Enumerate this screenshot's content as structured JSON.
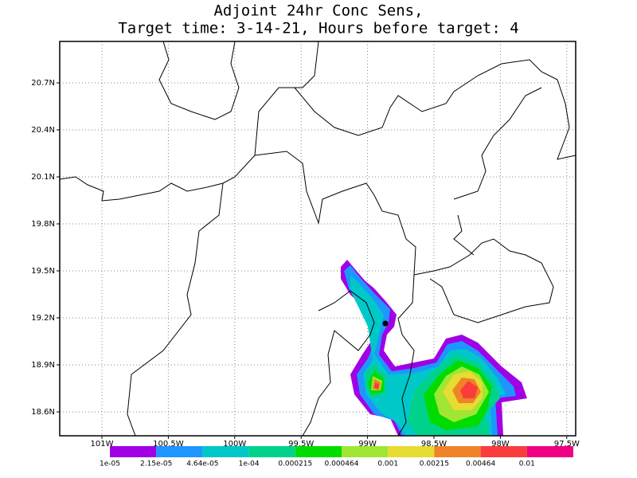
{
  "title": [
    "Adjoint 24hr Conc Sens,",
    "Target time: 3-14-21, Hours before target: 4"
  ],
  "lat_labels": [
    "20.7N",
    "20.4N",
    "20.1N",
    "19.8N",
    "19.5N",
    "19.2N",
    "18.9N",
    "18.6N"
  ],
  "lon_labels": [
    "101W",
    "100.5W",
    "100W",
    "99.5W",
    "99W",
    "98.5W",
    "98W",
    "97.5W"
  ],
  "colorbar": {
    "colors": [
      "#a000e6",
      "#1e96ff",
      "#00c8c8",
      "#00d28c",
      "#00dc00",
      "#a0e632",
      "#e6dc32",
      "#f08228",
      "#fa3c3c",
      "#f00082"
    ],
    "labels": [
      "1e-05",
      "2.15e-05",
      "4.64e-05",
      "1e-04",
      "0.000215",
      "0.000464",
      "0.001",
      "0.00215",
      "0.00464",
      "0.01"
    ]
  }
}
